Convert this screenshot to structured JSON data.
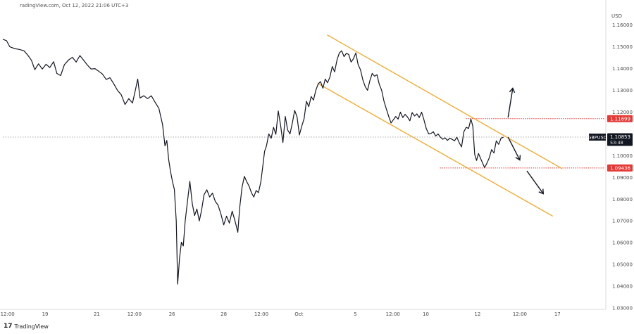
{
  "header": {
    "text": "radingView.com, Oct 12, 2022 21:06 UTC+3"
  },
  "brand": {
    "logo_glyph": "17",
    "name": "TradingView"
  },
  "colors": {
    "price_line": "#131722",
    "channel": "#f5a623",
    "level_dotted": "#e53935",
    "label_red": "#e53935",
    "label_dark": "#131722",
    "axis_text": "#4a4a4a",
    "current_dotted": "#9e9e9e"
  },
  "chart_data": {
    "type": "line",
    "symbol": "GBPUSD",
    "currency_label": "USD",
    "ylim": [
      1.03,
      1.167
    ],
    "xlim": [
      0,
      128
    ],
    "y_ticks": [
      "1.16000",
      "1.15000",
      "1.14000",
      "1.13000",
      "1.12000",
      "1.10000",
      "1.09000",
      "1.08000",
      "1.07000",
      "1.06000",
      "1.05000",
      "1.04000",
      "1.03000"
    ],
    "y_tick_values": [
      1.16,
      1.15,
      1.14,
      1.13,
      1.12,
      1.1,
      1.09,
      1.08,
      1.07,
      1.06,
      1.05,
      1.04,
      1.03
    ],
    "x_ticks": [
      {
        "label": "12:00",
        "x": 1
      },
      {
        "label": "19",
        "x": 9
      },
      {
        "label": "21",
        "x": 20
      },
      {
        "label": "12:00",
        "x": 28
      },
      {
        "label": "26",
        "x": 36
      },
      {
        "label": "28",
        "x": 47
      },
      {
        "label": "12:00",
        "x": 55
      },
      {
        "label": "Oct",
        "x": 63
      },
      {
        "label": "5",
        "x": 75
      },
      {
        "label": "12:00",
        "x": 83
      },
      {
        "label": "10",
        "x": 90
      },
      {
        "label": "12",
        "x": 101
      },
      {
        "label": "12:00",
        "x": 110
      },
      {
        "label": "17",
        "x": 118
      }
    ],
    "price_labels": [
      {
        "text": "1.11699",
        "value": 1.11699,
        "style": "red"
      },
      {
        "text": "1.10853",
        "value": 1.10853,
        "style": "dark",
        "sub": "53:48"
      },
      {
        "text": "1.09436",
        "value": 1.09436,
        "style": "red"
      }
    ],
    "current_price": 1.10853,
    "horizontal_levels": [
      {
        "value": 1.11699,
        "x_from": 98.5,
        "x_to": 128
      },
      {
        "value": 1.09436,
        "x_from": 93,
        "x_to": 128
      }
    ],
    "channel_lines": [
      {
        "from": [
          69,
          1.1555
        ],
        "to": [
          119,
          1.094
        ]
      },
      {
        "from": [
          67,
          1.1332
        ],
        "to": [
          117,
          1.0722
        ]
      }
    ],
    "arrows": [
      {
        "from": [
          107.5,
          1.1175
        ],
        "to": [
          108.5,
          1.131
        ]
      },
      {
        "from": [
          107.5,
          1.1085
        ],
        "to": [
          110,
          1.098
        ]
      },
      {
        "from": [
          111.5,
          1.093
        ],
        "to": [
          115,
          1.0825
        ]
      }
    ],
    "series": [
      {
        "points": [
          [
            0,
            1.1535
          ],
          [
            0.8,
            1.1528
          ],
          [
            1.5,
            1.15
          ],
          [
            2.5,
            1.1492
          ],
          [
            3.5,
            1.1488
          ],
          [
            4.5,
            1.1482
          ],
          [
            5.3,
            1.1462
          ],
          [
            6.1,
            1.1438
          ],
          [
            6.8,
            1.1395
          ],
          [
            7.6,
            1.1422
          ],
          [
            8.4,
            1.1398
          ],
          [
            9.2,
            1.142
          ],
          [
            10,
            1.1405
          ],
          [
            10.8,
            1.1432
          ],
          [
            11.5,
            1.1378
          ],
          [
            12.3,
            1.1368
          ],
          [
            13.1,
            1.1418
          ],
          [
            14,
            1.144
          ],
          [
            14.8,
            1.1452
          ],
          [
            15.6,
            1.143
          ],
          [
            16.4,
            1.146
          ],
          [
            17.2,
            1.1438
          ],
          [
            18,
            1.1416
          ],
          [
            18.8,
            1.1398
          ],
          [
            19.6,
            1.14
          ],
          [
            20.4,
            1.1388
          ],
          [
            21.2,
            1.1375
          ],
          [
            22,
            1.135
          ],
          [
            22.8,
            1.1358
          ],
          [
            23.6,
            1.133
          ],
          [
            24.4,
            1.13
          ],
          [
            25.2,
            1.128
          ],
          [
            26,
            1.1235
          ],
          [
            26.8,
            1.1262
          ],
          [
            27.6,
            1.1242
          ],
          [
            28.2,
            1.13
          ],
          [
            28.7,
            1.1352
          ],
          [
            29.2,
            1.1265
          ],
          [
            30,
            1.1275
          ],
          [
            30.8,
            1.1262
          ],
          [
            31.6,
            1.1275
          ],
          [
            32.4,
            1.1245
          ],
          [
            33.2,
            1.1218
          ],
          [
            34,
            1.1142
          ],
          [
            34.5,
            1.1045
          ],
          [
            34.9,
            1.107
          ],
          [
            35.3,
            1.098
          ],
          [
            35.7,
            1.0925
          ],
          [
            36.1,
            1.088
          ],
          [
            36.5,
            1.0845
          ],
          [
            36.9,
            1.07
          ],
          [
            37.2,
            1.041
          ],
          [
            37.6,
            1.053
          ],
          [
            38,
            1.0602
          ],
          [
            38.4,
            1.0585
          ],
          [
            38.8,
            1.07
          ],
          [
            39.3,
            1.0792
          ],
          [
            39.8,
            1.0882
          ],
          [
            40.3,
            1.078
          ],
          [
            40.8,
            1.0725
          ],
          [
            41.3,
            1.0755
          ],
          [
            41.8,
            1.07
          ],
          [
            42.3,
            1.075
          ],
          [
            42.8,
            1.082
          ],
          [
            43.4,
            1.0843
          ],
          [
            44,
            1.081
          ],
          [
            44.6,
            1.0828
          ],
          [
            45.2,
            1.079
          ],
          [
            45.8,
            1.0772
          ],
          [
            46.4,
            1.0732
          ],
          [
            47,
            1.0682
          ],
          [
            47.6,
            1.0722
          ],
          [
            48.2,
            1.069
          ],
          [
            48.8,
            1.0745
          ],
          [
            49.4,
            1.07
          ],
          [
            50,
            1.0648
          ],
          [
            50.4,
            1.0762
          ],
          [
            50.9,
            1.0855
          ],
          [
            51.4,
            1.0905
          ],
          [
            51.9,
            1.088
          ],
          [
            52.4,
            1.086
          ],
          [
            52.9,
            1.083
          ],
          [
            53.4,
            1.081
          ],
          [
            53.9,
            1.084
          ],
          [
            54.4,
            1.083
          ],
          [
            54.9,
            1.088
          ],
          [
            55.3,
            1.095
          ],
          [
            55.7,
            1.102
          ],
          [
            56.1,
            1.1045
          ],
          [
            56.6,
            1.11
          ],
          [
            57.1,
            1.108
          ],
          [
            57.6,
            1.113
          ],
          [
            58.1,
            1.1098
          ],
          [
            58.6,
            1.1205
          ],
          [
            59.1,
            1.114
          ],
          [
            59.6,
            1.106
          ],
          [
            60.1,
            1.118
          ],
          [
            60.6,
            1.1118
          ],
          [
            61.1,
            1.11
          ],
          [
            61.6,
            1.115
          ],
          [
            62.1,
            1.1208
          ],
          [
            62.6,
            1.1178
          ],
          [
            63.1,
            1.1095
          ],
          [
            63.6,
            1.1135
          ],
          [
            64.1,
            1.117
          ],
          [
            64.6,
            1.125
          ],
          [
            65.1,
            1.1225
          ],
          [
            65.6,
            1.1272
          ],
          [
            66.1,
            1.1255
          ],
          [
            66.6,
            1.13
          ],
          [
            67.1,
            1.133
          ],
          [
            67.6,
            1.134
          ],
          [
            68.1,
            1.131
          ],
          [
            68.6,
            1.1352
          ],
          [
            69.1,
            1.1335
          ],
          [
            69.6,
            1.1362
          ],
          [
            70.1,
            1.141
          ],
          [
            70.6,
            1.1385
          ],
          [
            71.1,
            1.144
          ],
          [
            71.6,
            1.1472
          ],
          [
            72.1,
            1.1482
          ],
          [
            72.6,
            1.1455
          ],
          [
            73.1,
            1.147
          ],
          [
            73.6,
            1.1465
          ],
          [
            74.1,
            1.143
          ],
          [
            74.6,
            1.1445
          ],
          [
            75.1,
            1.1472
          ],
          [
            75.6,
            1.1418
          ],
          [
            76.1,
            1.1395
          ],
          [
            76.6,
            1.1348
          ],
          [
            77.1,
            1.1318
          ],
          [
            77.6,
            1.13
          ],
          [
            78.1,
            1.1345
          ],
          [
            78.6,
            1.1378
          ],
          [
            79.1,
            1.1365
          ],
          [
            79.6,
            1.1372
          ],
          [
            80.1,
            1.1328
          ],
          [
            80.6,
            1.13
          ],
          [
            81.1,
            1.125
          ],
          [
            81.6,
            1.1215
          ],
          [
            82.1,
            1.118
          ],
          [
            82.6,
            1.115
          ],
          [
            83.1,
            1.1165
          ],
          [
            83.6,
            1.118
          ],
          [
            84.1,
            1.1168
          ],
          [
            84.6,
            1.12
          ],
          [
            85.1,
            1.1175
          ],
          [
            85.6,
            1.119
          ],
          [
            86.1,
            1.1178
          ],
          [
            86.6,
            1.116
          ],
          [
            87.1,
            1.1198
          ],
          [
            87.6,
            1.1182
          ],
          [
            88.1,
            1.1192
          ],
          [
            88.6,
            1.1175
          ],
          [
            89.1,
            1.12
          ],
          [
            89.6,
            1.1165
          ],
          [
            90.1,
            1.1125
          ],
          [
            90.6,
            1.11
          ],
          [
            91.1,
            1.1102
          ],
          [
            91.6,
            1.111
          ],
          [
            92.1,
            1.109
          ],
          [
            92.6,
            1.11
          ],
          [
            93.1,
            1.1085
          ],
          [
            93.6,
            1.1075
          ],
          [
            94.1,
            1.1082
          ],
          [
            94.6,
            1.107
          ],
          [
            95.1,
            1.108
          ],
          [
            95.6,
            1.1075
          ],
          [
            96.1,
            1.1068
          ],
          [
            96.6,
            1.1085
          ],
          [
            97.1,
            1.106
          ],
          [
            97.6,
            1.104
          ],
          [
            98.1,
            1.111
          ],
          [
            98.6,
            1.113
          ],
          [
            99.1,
            1.1125
          ],
          [
            99.6,
            1.1168
          ],
          [
            100,
            1.1135
          ],
          [
            100.4,
            1.1005
          ],
          [
            100.8,
            1.0978
          ],
          [
            101.2,
            1.101
          ],
          [
            101.6,
            1.099
          ],
          [
            102,
            1.097
          ],
          [
            102.5,
            1.0945
          ],
          [
            103,
            1.0965
          ],
          [
            103.5,
            1.099
          ],
          [
            104,
            1.1028
          ],
          [
            104.5,
            1.1012
          ],
          [
            105,
            1.1068
          ],
          [
            105.5,
            1.1052
          ],
          [
            106,
            1.108
          ],
          [
            106.5,
            1.1085
          ]
        ]
      }
    ]
  }
}
